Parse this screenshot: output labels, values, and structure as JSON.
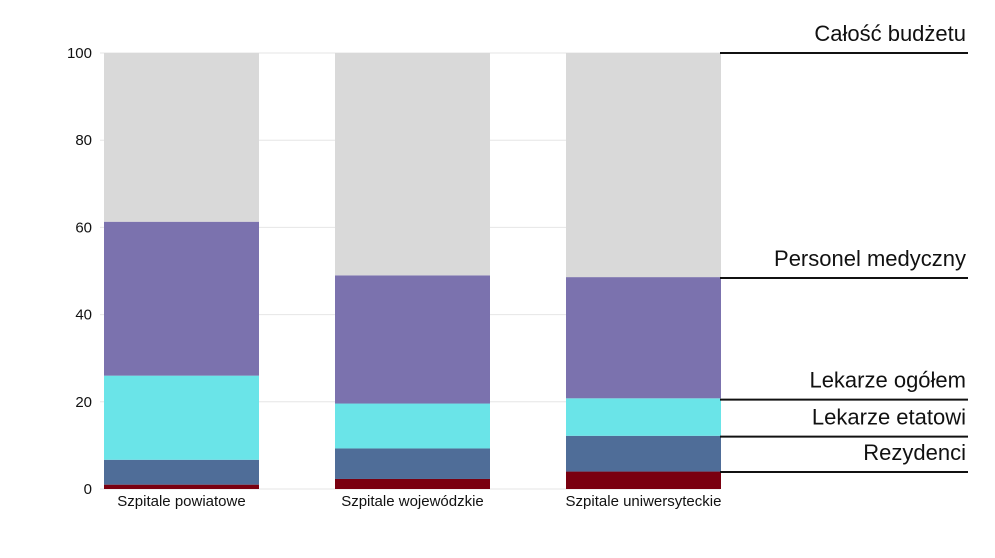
{
  "chart_data": {
    "type": "bar",
    "stacked": true,
    "categories": [
      "Szpitale powiatowe",
      "Szpitale wojewódzkie",
      "Szpitale uniwersyteckie"
    ],
    "ylim": [
      0,
      100
    ],
    "yticks": [
      0,
      20,
      40,
      60,
      80,
      100
    ],
    "grid": true,
    "series": [
      {
        "name": "Rezydenci",
        "color": "#7a0010",
        "values": [
          1,
          2.3,
          4
        ]
      },
      {
        "name": "Lekarze etatowi",
        "color": "#4f6d98",
        "values": [
          5.7,
          7,
          8.2
        ]
      },
      {
        "name": "Lekarze ogółem",
        "color": "#6ae4e8",
        "values": [
          19.3,
          10.3,
          8.6
        ]
      },
      {
        "name": "Personel medyczny",
        "color": "#7b72ae",
        "values": [
          35.3,
          29.4,
          27.8
        ]
      },
      {
        "name": "Całość budżetu",
        "color": "#d9d9d9",
        "values": [
          38.7,
          51,
          51.4
        ]
      }
    ],
    "series_label_levels": [
      3.9,
      12,
      20.5,
      48.4,
      100
    ]
  }
}
